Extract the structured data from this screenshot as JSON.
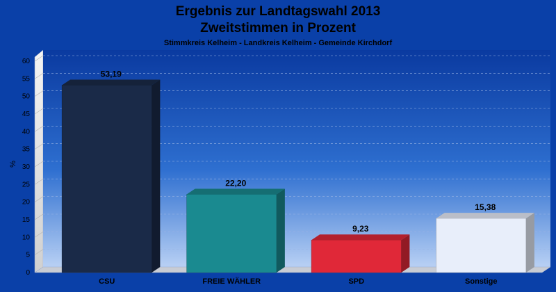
{
  "chart_data": {
    "type": "bar",
    "title": "Ergebnis zur Landtagswahl 2013",
    "title_line2": "Zweitstimmen in Prozent",
    "subtitle": "Stimmkreis Kelheim - Landkreis Kelheim - Gemeinde Kirchdorf",
    "ylabel": "%",
    "xlabel": "",
    "ylim": [
      0,
      60
    ],
    "yticks": [
      "0",
      "5",
      "10",
      "15",
      "20",
      "25",
      "30",
      "35",
      "40",
      "45",
      "50",
      "55",
      "60"
    ],
    "grid": true,
    "categories": [
      "CSU",
      "FREIE WÄHLER",
      "SPD",
      "Sonstige"
    ],
    "values": [
      53.19,
      22.2,
      9.23,
      15.38
    ],
    "value_labels": [
      "53,19",
      "22,20",
      "9,23",
      "15,38"
    ],
    "colors": [
      "#1a2a48",
      "#1a8a90",
      "#e02838",
      "#e8eefa"
    ],
    "background_color": "#0a40a8"
  }
}
